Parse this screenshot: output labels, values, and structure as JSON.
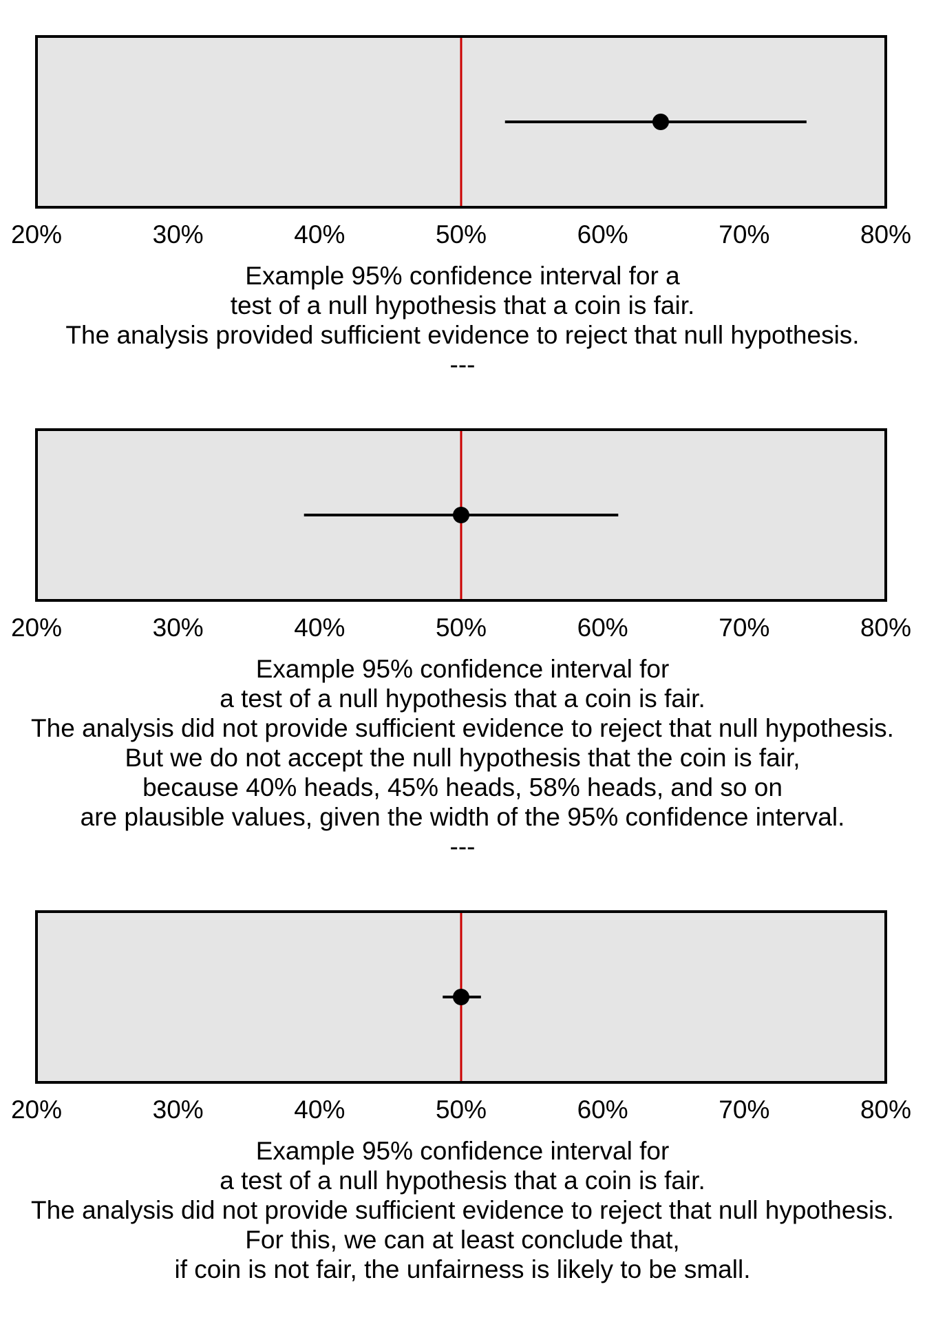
{
  "colors": {
    "panel_fill": "#e5e5e5",
    "panel_border": "#000000",
    "reference_line": "#cc0000",
    "interval": "#000000",
    "point": "#000000"
  },
  "chart_data": [
    {
      "type": "scatter",
      "subtype": "confidence-interval",
      "xlim": [
        20,
        80
      ],
      "x_ticks": [
        20,
        30,
        40,
        50,
        60,
        70,
        80
      ],
      "x_tick_labels": [
        "20%",
        "30%",
        "40%",
        "50%",
        "60%",
        "70%",
        "80%"
      ],
      "reference_value": 50,
      "estimate": 64.1,
      "ci_lower": 53.1,
      "ci_upper": 74.4,
      "grid": false,
      "caption": [
        "Example 95% confidence interval for a",
        "test of a null hypothesis that a coin is fair.",
        "The analysis provided sufficient evidence to reject that null hypothesis.",
        "---"
      ]
    },
    {
      "type": "scatter",
      "subtype": "confidence-interval",
      "xlim": [
        20,
        80
      ],
      "x_ticks": [
        20,
        30,
        40,
        50,
        60,
        70,
        80
      ],
      "x_tick_labels": [
        "20%",
        "30%",
        "40%",
        "50%",
        "60%",
        "70%",
        "80%"
      ],
      "reference_value": 50,
      "estimate": 50,
      "ci_lower": 38.9,
      "ci_upper": 61.1,
      "grid": false,
      "caption": [
        "Example 95% confidence interval for",
        "a test of a null hypothesis that a coin is fair.",
        "The analysis did not provide sufficient evidence to reject that null hypothesis.",
        "But we do not accept the null hypothesis that the coin is fair,",
        "because 40% heads, 45% heads, 58% heads, and so on",
        "are plausible values, given the width of the 95% confidence interval.",
        "---"
      ]
    },
    {
      "type": "scatter",
      "subtype": "confidence-interval",
      "xlim": [
        20,
        80
      ],
      "x_ticks": [
        20,
        30,
        40,
        50,
        60,
        70,
        80
      ],
      "x_tick_labels": [
        "20%",
        "30%",
        "40%",
        "50%",
        "60%",
        "70%",
        "80%"
      ],
      "reference_value": 50,
      "estimate": 50,
      "ci_lower": 48.7,
      "ci_upper": 51.4,
      "grid": false,
      "caption": [
        "Example 95% confidence interval for",
        "a test of a null hypothesis that a coin is fair.",
        "The analysis did not provide sufficient evidence to reject that null hypothesis.",
        "For this, we can at least conclude that,",
        "if coin is not fair, the unfairness is likely to be small."
      ]
    }
  ]
}
